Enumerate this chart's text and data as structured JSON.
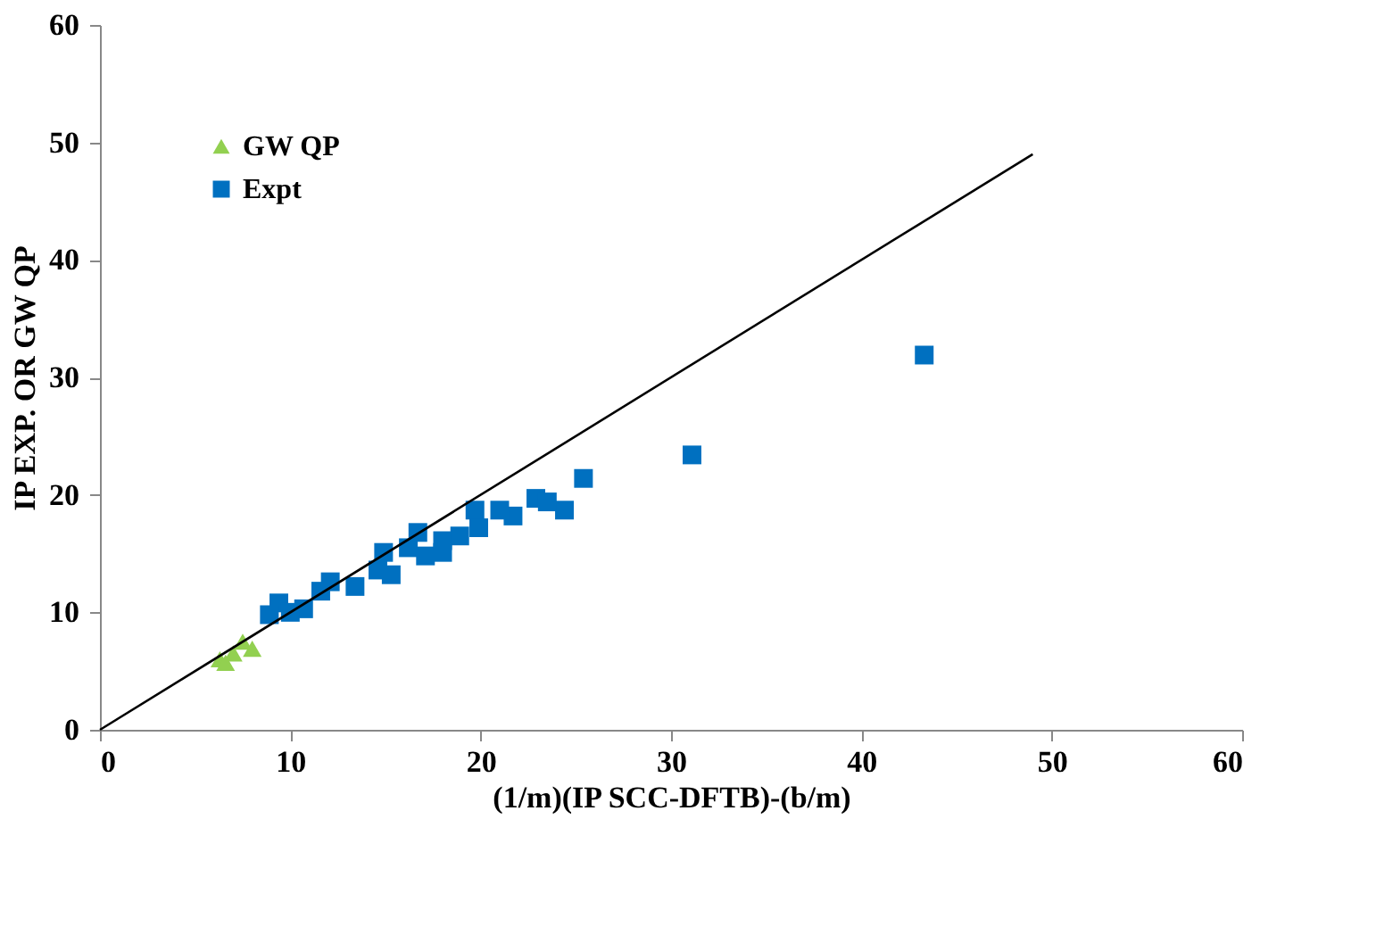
{
  "chart_data": {
    "type": "scatter",
    "xlabel": "(1/m)(IP SCC-DFTB)-(b/m)",
    "ylabel": "IP EXP. OR GW QP",
    "xlim": [
      0,
      60
    ],
    "ylim": [
      0,
      60
    ],
    "xticks": [
      0,
      10,
      20,
      30,
      40,
      50,
      60
    ],
    "yticks": [
      0,
      10,
      20,
      30,
      40,
      50,
      60
    ],
    "grid": false,
    "legend": "top left",
    "series": [
      {
        "name": "GW QP",
        "color": "#92d050",
        "marker": "triangle",
        "x": [
          6.3,
          7.0,
          7.5,
          8.0,
          6.6
        ],
        "values": [
          6.0,
          6.5,
          7.5,
          6.9,
          5.7
        ]
      },
      {
        "name": "Expt",
        "color": "#0070c0",
        "marker": "square",
        "x": [
          43.3,
          31.1,
          25.4,
          22.9,
          21.7,
          24.4,
          21.0,
          23.5,
          19.7,
          19.9,
          18.9,
          18.0,
          16.7,
          17.1,
          16.2,
          14.9,
          14.6,
          15.3,
          13.4,
          12.1,
          11.6,
          10.7,
          9.4,
          8.9,
          10.0,
          18.0
        ],
        "values": [
          31.9,
          23.4,
          21.4,
          19.7,
          18.2,
          18.7,
          18.7,
          19.4,
          18.7,
          17.2,
          16.5,
          15.1,
          16.8,
          14.8,
          15.5,
          15.1,
          13.6,
          13.2,
          12.2,
          12.6,
          11.8,
          10.3,
          10.8,
          9.8,
          10.0,
          16.1
        ]
      },
      {
        "type": "line",
        "color": "#000000",
        "x": [
          0,
          49
        ],
        "values": [
          0,
          49
        ]
      }
    ]
  }
}
